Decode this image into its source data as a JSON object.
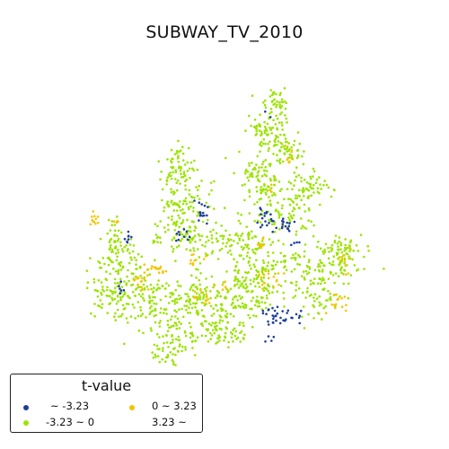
{
  "title": "SUBWAY_TV_2010",
  "legend": {
    "title": "t-value",
    "items": [
      {
        "label": "~ -3.23",
        "color": "#1f3f9a"
      },
      {
        "label": "0 ~ 3.23",
        "color": "#f5c400"
      },
      {
        "label": "-3.23 ~ 0",
        "color": "#9be400"
      },
      {
        "label": "3.23 ~",
        "color": "#ffffff"
      }
    ]
  }
}
